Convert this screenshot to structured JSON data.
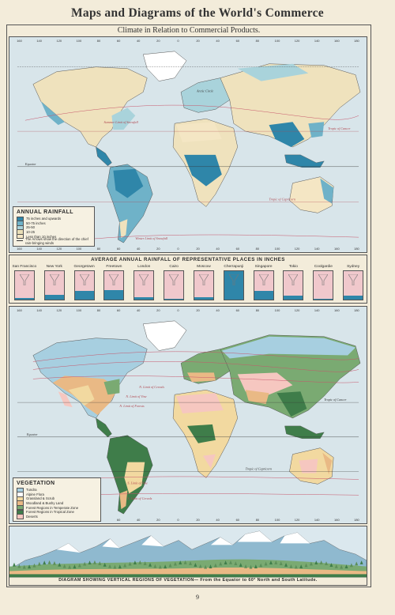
{
  "page": {
    "title": "Maps and Diagrams of the World's Commerce",
    "subtitle": "Climate in Relation to Commercial Products.",
    "page_number": "9"
  },
  "longitude_ticks": [
    "160",
    "140",
    "120",
    "100",
    "80",
    "60",
    "40",
    "20",
    "0",
    "20",
    "40",
    "60",
    "80",
    "100",
    "120",
    "140",
    "160",
    "180"
  ],
  "rainfall_map": {
    "labels": {
      "arctic_circle": "Arctic Circle",
      "tropic_cancer": "Tropic of Cancer",
      "equator": "Equator",
      "tropic_capricorn": "Tropic of Capricorn",
      "summer_limit": "Summer Limit of Snowfall",
      "winter_limit": "Winter Limit of Snowfall"
    },
    "legend": {
      "heading": "ANNUAL RAINFALL",
      "items": [
        {
          "label": "75 inches and upwards",
          "color": "#2f86a9"
        },
        {
          "label": "50-75 inches",
          "color": "#6fb2c8"
        },
        {
          "label": "25-50",
          "color": "#a9d3db"
        },
        {
          "label": "10-25",
          "color": "#e9dfb8"
        },
        {
          "label": "Less than 10 inches",
          "color": "#f4e6c4"
        }
      ],
      "note": "The Arrows show the direction of the chief rain-bringing winds",
      "winter_note": "Winter Limit of Snowfall"
    }
  },
  "rainfall_chart": {
    "title": "AVERAGE ANNUAL RAINFALL OF REPRESENTATIVE PLACES IN INCHES",
    "stations": [
      {
        "name": "San Francisco",
        "fill": 0.06
      },
      {
        "name": "New York",
        "fill": 0.17
      },
      {
        "name": "Georgetown",
        "fill": 0.31
      },
      {
        "name": "Freetown",
        "fill": 0.33
      },
      {
        "name": "London",
        "fill": 0.08
      },
      {
        "name": "Cairo",
        "fill": 0.02
      },
      {
        "name": "Moscow",
        "fill": 0.07
      },
      {
        "name": "Cherrapunji",
        "fill": 1.0
      },
      {
        "name": "Singapore",
        "fill": 0.3
      },
      {
        "name": "Tokio",
        "fill": 0.14
      },
      {
        "name": "Coolgardie",
        "fill": 0.04
      },
      {
        "name": "Sydney",
        "fill": 0.15
      }
    ]
  },
  "vegetation_map": {
    "labels": {
      "n_limit_cereals": "N. Limit of Cereals",
      "n_limit_vine": "N. Limit of Vine",
      "n_limit_forests": "N. Limit of Forests",
      "tropic_cancer": "Tropic of Cancer",
      "equator": "Equator",
      "tropic_capricorn": "Tropic of Capricorn",
      "s_limit_cereals": "S. Limit of Cereals",
      "s_limit_vine": "S. Limit of Vine"
    },
    "legend": {
      "heading": "VEGETATION",
      "items": [
        {
          "label": "Tundra",
          "color": "#a7cfe0"
        },
        {
          "label": "Alpine Flora",
          "color": "#ffffff"
        },
        {
          "label": "Grassland & Scrub",
          "color": "#f2d9a0"
        },
        {
          "label": "Woodland & Bushy Land",
          "color": "#e9b985"
        },
        {
          "label": "Forest Regions in Temperate Zone",
          "color": "#7aaa72"
        },
        {
          "label": "Forest Regions in Tropical Zone",
          "color": "#3f7d4a"
        },
        {
          "label": "Deserts",
          "color": "#f6c7c0"
        }
      ]
    }
  },
  "vegetation_diagram": {
    "caption": "DIAGRAM SHOWING VERTICAL REGIONS OF VEGETATION— From the Equator to 60° North and South Latitude."
  },
  "colors": {
    "ocean": "#d8e5ea",
    "land_dry": "#efe2bd",
    "rain_heavy": "#2f86a9",
    "rain_med": "#6fb2c8",
    "rain_light": "#a9d3db",
    "desert_pink": "#f6c7c0",
    "forest_dark": "#3f7d4a",
    "grass": "#f2d9a0",
    "woodland": "#e9b985",
    "tundra": "#a7cfe0"
  }
}
